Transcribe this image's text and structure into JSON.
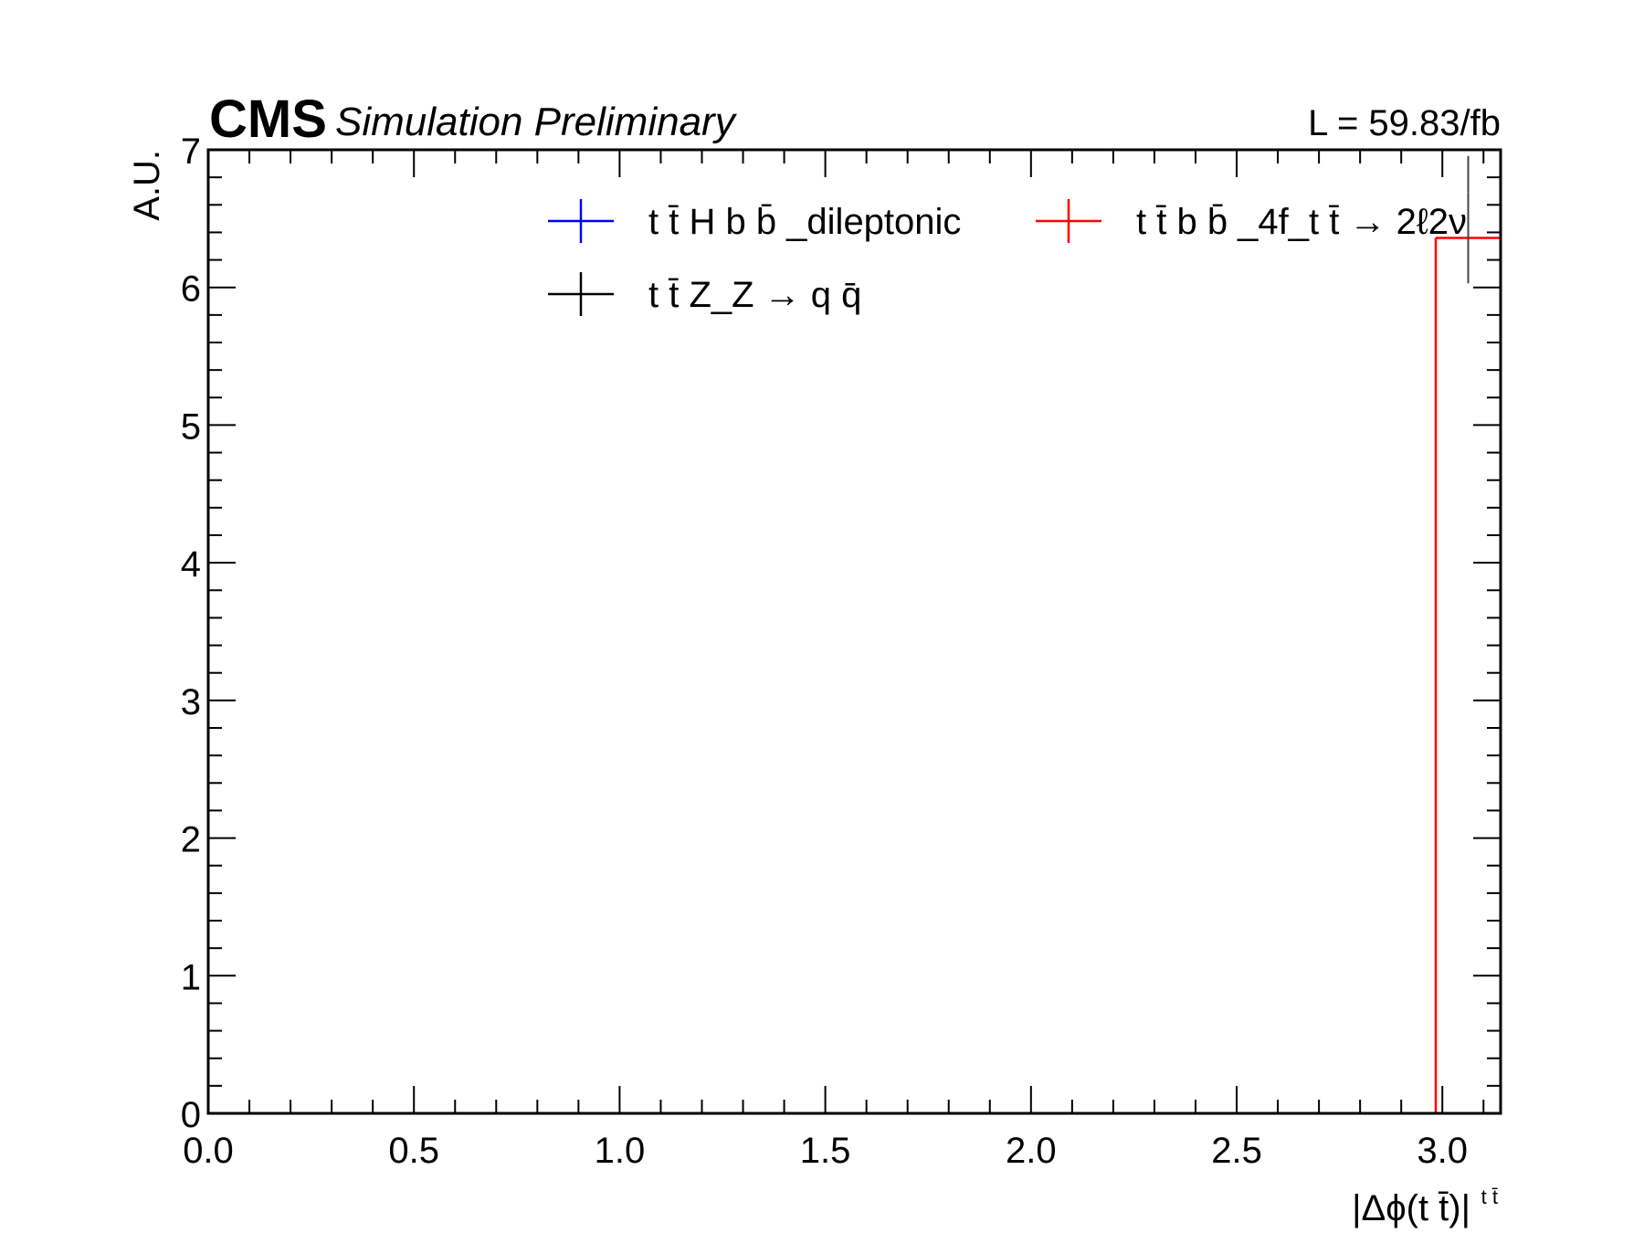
{
  "header": {
    "cms_label": "CMS",
    "simulation_label": "Simulation Preliminary",
    "lumi_label": "L = 59.83/fb"
  },
  "axes": {
    "xlabel": "|Δϕ(t t̄)|",
    "xlabel_sup": "t t̄",
    "ylabel": "A.U.",
    "xlim": [
      0,
      3.14159
    ],
    "ylim": [
      0,
      7
    ],
    "x_ticks": [
      "0.0",
      "0.5",
      "1.0",
      "1.5",
      "2.0",
      "2.5",
      "3.0"
    ],
    "y_ticks": [
      "0",
      "1",
      "2",
      "3",
      "4",
      "5",
      "6",
      "7"
    ]
  },
  "legend": {
    "items": [
      {
        "label": "t t̄ H b b̄ _dileptonic",
        "color": "#0000ff"
      },
      {
        "label": "t t̄ b b̄ _4f_t t̄ → 2ℓ2ν",
        "color": "#ff0000"
      },
      {
        "label": "t t̄ Z_Z → q q̄",
        "color": "#000000"
      }
    ]
  },
  "chart_data": {
    "type": "line",
    "title": "",
    "xlabel": "|Δϕ(tt̄)|^{tt̄}",
    "ylabel": "A.U.",
    "xlim": [
      0,
      3.14159
    ],
    "ylim": [
      0,
      7
    ],
    "grid": false,
    "legend_position": "top",
    "series": [
      {
        "name": "tt̄Hbb̄_dileptonic",
        "color": "#0000ff",
        "x": [],
        "y": []
      },
      {
        "name": "tt̄bb̄_4f_tt̄ → 2ℓ2ν",
        "color": "#ff0000",
        "bins": [
          [
            2.984,
            3.14159
          ]
        ],
        "y": [
          6.36
        ],
        "yerr": [
          0.33
        ]
      },
      {
        "name": "tt̄Z_Z → qq̄",
        "color": "#000000",
        "x": [],
        "y": []
      }
    ]
  }
}
